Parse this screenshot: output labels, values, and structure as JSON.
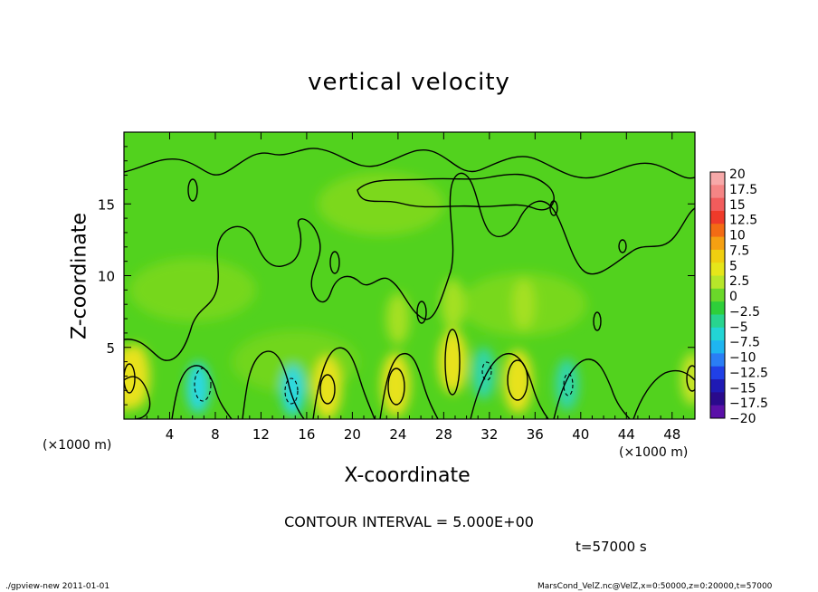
{
  "footer": {
    "left": "./gpview-new  2011-01-01",
    "right": "MarsCond_VelZ.nc@VelZ,x=0:50000,z=0:20000,t=57000"
  },
  "annotations": {
    "x_unit_left": "(×1000 m)",
    "x_unit_right": "(×1000 m)",
    "contour_interval": "CONTOUR INTERVAL = 5.000E+00",
    "time": "t=57000 s"
  },
  "chart_data": {
    "type": "heatmap",
    "title": "vertical velocity",
    "xlabel": "X-coordinate",
    "ylabel": "Z-coordinate",
    "xlim": [
      0,
      50
    ],
    "ylim": [
      0,
      20
    ],
    "x_ticks": [
      4,
      8,
      12,
      16,
      20,
      24,
      28,
      32,
      36,
      40,
      44,
      48
    ],
    "y_ticks": [
      5,
      10,
      15
    ],
    "x_tick_labels": [
      "4",
      "8",
      "12",
      "16",
      "20",
      "24",
      "28",
      "32",
      "36",
      "40",
      "44",
      "48"
    ],
    "y_tick_labels": [
      "5",
      "10",
      "15"
    ],
    "colorbar": {
      "labels": [
        "20",
        "17.5",
        "15",
        "12.5",
        "10",
        "7.5",
        "5",
        "2.5",
        "0",
        "-2.5",
        "-5",
        "-7.5",
        "-10",
        "-12.5",
        "-15",
        "-17.5",
        "-20"
      ],
      "colors": [
        "#f7a9a9",
        "#f58585",
        "#f25c5c",
        "#ef3a2a",
        "#f36b14",
        "#f5a012",
        "#f0cf10",
        "#e6e61a",
        "#b7e62a",
        "#6ad82a",
        "#2ecf3a",
        "#28d48f",
        "#22d5d5",
        "#1eb5f0",
        "#2a7ef5",
        "#2040e6",
        "#1f1ab4",
        "#2a0a8c",
        "#5a10a8"
      ]
    },
    "hotspots": [
      {
        "x": 0.2,
        "z": 2.8,
        "value": 7.5
      },
      {
        "x": 1.0,
        "z": 3.0,
        "value": 7.5
      },
      {
        "x": 6.5,
        "z": 2.2,
        "value": -7.5
      },
      {
        "x": 14.8,
        "z": 2.0,
        "value": -7.5
      },
      {
        "x": 17.8,
        "z": 2.2,
        "value": 7.5
      },
      {
        "x": 23.8,
        "z": 2.4,
        "value": 7.5
      },
      {
        "x": 28.8,
        "z": 4.0,
        "value": 7.5
      },
      {
        "x": 31.5,
        "z": 3.2,
        "value": -5
      },
      {
        "x": 34.5,
        "z": 2.6,
        "value": 7.5
      },
      {
        "x": 38.8,
        "z": 2.4,
        "value": -5
      },
      {
        "x": 49.8,
        "z": 2.8,
        "value": 5
      },
      {
        "x": 28.8,
        "z": 8.0,
        "value": 2.5
      },
      {
        "x": 24.0,
        "z": 7.0,
        "value": 2.5
      },
      {
        "x": 35.0,
        "z": 8.0,
        "value": 2.5
      }
    ]
  }
}
